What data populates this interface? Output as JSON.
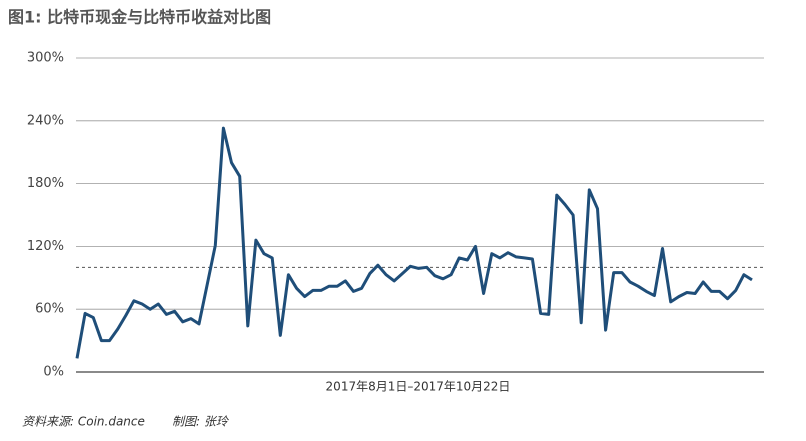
{
  "chart_data": {
    "type": "line",
    "title": "图1: 比特币现金与比特币收益对比图",
    "x_label": "2017年8月1日–2017年10月22日",
    "source": "资料来源: Coin.dance",
    "credit": "制图: 张玲",
    "color": "#1f4e79",
    "reference_line": 100,
    "grid": true,
    "ylim": [
      0,
      300
    ],
    "yticks": [
      {
        "value": 0,
        "label": "0%"
      },
      {
        "value": 60,
        "label": "60%"
      },
      {
        "value": 120,
        "label": "120%"
      },
      {
        "value": 180,
        "label": "180%"
      },
      {
        "value": 240,
        "label": "240%"
      },
      {
        "value": 300,
        "label": "300%"
      }
    ],
    "values": [
      13,
      56,
      52,
      30,
      30,
      41,
      54,
      68,
      65,
      60,
      65,
      55,
      58,
      48,
      51,
      46,
      83,
      121,
      233,
      200,
      187,
      44,
      126,
      113,
      109,
      35,
      93,
      80,
      72,
      78,
      78,
      82,
      82,
      87,
      77,
      80,
      94,
      102,
      93,
      87,
      94,
      101,
      99,
      100,
      92,
      89,
      93,
      109,
      107,
      120,
      75,
      113,
      109,
      114,
      110,
      109,
      108,
      56,
      55,
      169,
      160,
      150,
      47,
      174,
      156,
      40,
      95,
      95,
      86,
      82,
      77,
      73,
      118,
      67,
      72,
      76,
      75,
      86,
      77,
      77,
      70,
      78,
      93,
      88
    ]
  }
}
